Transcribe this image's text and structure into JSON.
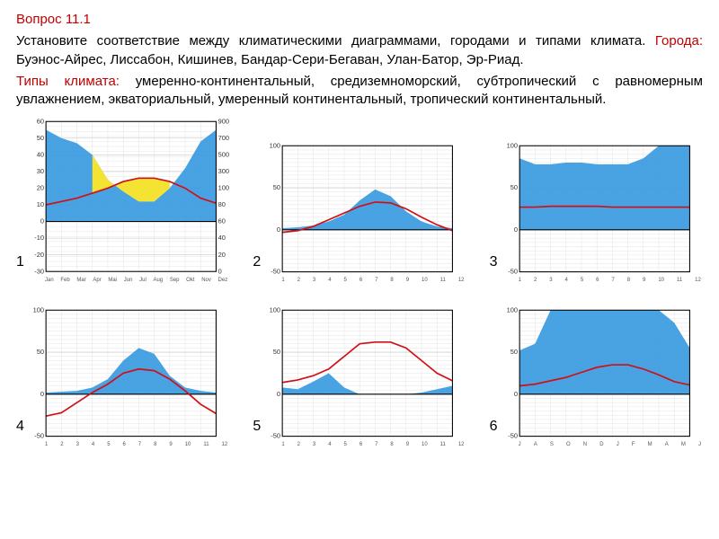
{
  "text": {
    "title_label": "Вопрос  11.1",
    "intro": "Установите соответствие между климатическими диаграммами, городами и типами климата.",
    "cities_label": "Города:",
    "cities": " Буэнос-Айрес, Лиссабон, Кишинев, Бандар-Сери-Бегаван, Улан-Батор, Эр-Риад.",
    "types_label": "Типы климата:",
    "types": " умеренно-континентальный, средиземноморский, субтропический с равномерным увлажнением, экваториальный, умеренный континентальный, тропический континентальный."
  },
  "charts_global": {
    "precip_fill": "#3a9ae0",
    "precip_yellow": "#f5e334",
    "temp_stroke": "#d01016",
    "zero_stroke": "#000000",
    "frame_stroke": "#000000",
    "bg": "#ffffff",
    "grid_minor": "#c8c8c8",
    "grid_major": "#9a9a9a"
  },
  "charts": [
    {
      "id": 1,
      "label": "1",
      "months": [
        "Jan",
        "Feb",
        "Mar",
        "Apr",
        "Mai",
        "Jun",
        "Jul",
        "Aug",
        "Sep",
        "Okt",
        "Nov",
        "Dez"
      ],
      "t_min": -30,
      "t_max": 60,
      "t_ticks": [
        -30,
        -20,
        -10,
        0,
        10,
        20,
        30,
        40,
        50,
        60
      ],
      "p_min": 0,
      "p_max": 900,
      "p_ticks": [
        0,
        20,
        40,
        60,
        80,
        100,
        300,
        500,
        700,
        900
      ],
      "temp": [
        10,
        12,
        14,
        17,
        20,
        24,
        26,
        26,
        24,
        20,
        14,
        11
      ],
      "precip_t": [
        55,
        50,
        47,
        40,
        25,
        18,
        12,
        12,
        20,
        32,
        48,
        55
      ],
      "yellow_start": 3,
      "yellow_end": 8,
      "p_cap": 100
    },
    {
      "id": 2,
      "label": "2",
      "months": [
        "1",
        "2",
        "3",
        "4",
        "5",
        "6",
        "7",
        "8",
        "9",
        "10",
        "11",
        "12"
      ],
      "t_min": -50,
      "t_max": 100,
      "t_step": 50,
      "p_cap": 100,
      "temp": [
        -3,
        -1,
        4,
        12,
        20,
        28,
        33,
        32,
        25,
        15,
        6,
        -1
      ],
      "precip_t": [
        2,
        3,
        5,
        10,
        18,
        35,
        48,
        40,
        22,
        10,
        4,
        2
      ]
    },
    {
      "id": 3,
      "label": "3",
      "months": [
        "1",
        "2",
        "3",
        "4",
        "5",
        "6",
        "7",
        "8",
        "9",
        "10",
        "11",
        "12"
      ],
      "t_min": -50,
      "t_max": 100,
      "t_step": 50,
      "p_cap": 100,
      "temp": [
        27,
        27,
        28,
        28,
        28,
        28,
        27,
        27,
        27,
        27,
        27,
        27
      ],
      "precip_t": [
        85,
        78,
        78,
        80,
        80,
        78,
        78,
        78,
        85,
        100,
        110,
        112
      ]
    },
    {
      "id": 4,
      "label": "4",
      "months": [
        "1",
        "2",
        "3",
        "4",
        "5",
        "6",
        "7",
        "8",
        "9",
        "10",
        "11",
        "12"
      ],
      "t_min": -50,
      "t_max": 100,
      "t_step": 50,
      "p_cap": 100,
      "temp": [
        -26,
        -22,
        -10,
        2,
        12,
        25,
        30,
        28,
        18,
        4,
        -12,
        -23
      ],
      "precip_t": [
        2,
        3,
        4,
        8,
        18,
        40,
        55,
        48,
        22,
        8,
        4,
        2
      ]
    },
    {
      "id": 5,
      "label": "5",
      "months": [
        "1",
        "2",
        "3",
        "4",
        "5",
        "6",
        "7",
        "8",
        "9",
        "10",
        "11",
        "12"
      ],
      "t_min": -50,
      "t_max": 100,
      "t_step": 50,
      "p_cap": 100,
      "temp": [
        14,
        17,
        22,
        30,
        45,
        60,
        62,
        62,
        55,
        40,
        25,
        16
      ],
      "precip_t": [
        8,
        6,
        15,
        25,
        8,
        0,
        0,
        0,
        0,
        2,
        6,
        10
      ]
    },
    {
      "id": 6,
      "label": "6",
      "months": [
        "J",
        "A",
        "S",
        "O",
        "N",
        "D",
        "J",
        "F",
        "M",
        "A",
        "M",
        "J"
      ],
      "t_min": -50,
      "t_max": 100,
      "t_step": 50,
      "p_cap": 100,
      "temp": [
        10,
        12,
        16,
        20,
        26,
        32,
        35,
        35,
        30,
        23,
        15,
        11
      ],
      "precip_t": [
        52,
        60,
        110,
        115,
        112,
        110,
        108,
        110,
        112,
        110,
        85,
        55
      ]
    }
  ]
}
